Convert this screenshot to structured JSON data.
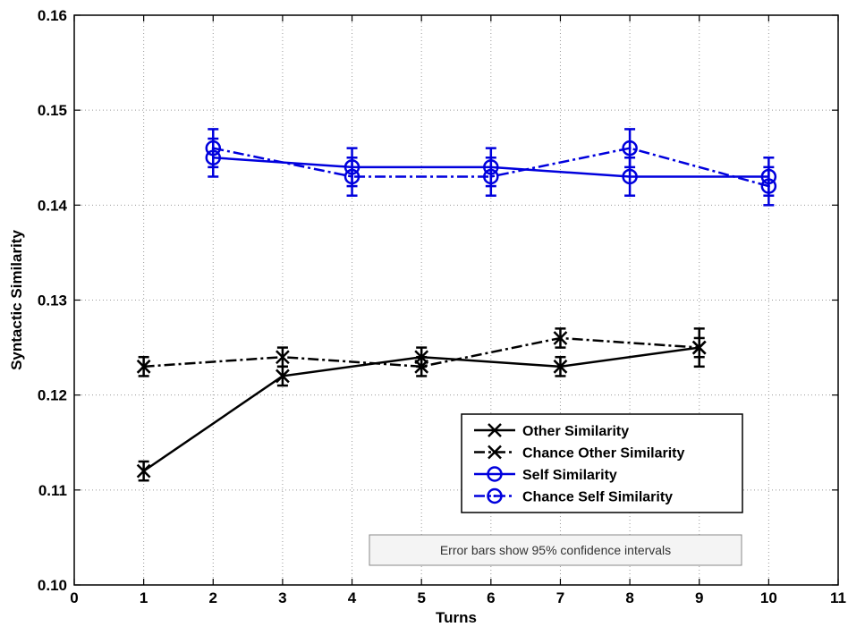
{
  "chart_data": {
    "type": "line",
    "xlabel": "Turns",
    "ylabel": "Syntactic Similarity",
    "xlim": [
      0,
      11
    ],
    "ylim": [
      0.1,
      0.16
    ],
    "xticks": [
      0,
      1,
      2,
      3,
      4,
      5,
      6,
      7,
      8,
      9,
      10,
      11
    ],
    "xtick_labels": [
      "0",
      "1",
      "2",
      "3",
      "4",
      "5",
      "6",
      "7",
      "8",
      "9",
      "10",
      "11"
    ],
    "yticks": [
      0.1,
      0.11,
      0.12,
      0.13,
      0.14,
      0.15,
      0.16
    ],
    "ytick_labels": [
      "0.10",
      "0.11",
      "0.12",
      "0.13",
      "0.14",
      "0.15",
      "0.16"
    ],
    "grid": true,
    "legend_position": "bottom-right",
    "annotation": "Error bars show 95% confidence intervals",
    "series": [
      {
        "name": "Other Similarity",
        "color": "#000000",
        "dash": "solid",
        "marker": "x",
        "x": [
          1,
          3,
          5,
          7,
          9
        ],
        "y": [
          0.112,
          0.122,
          0.124,
          0.123,
          0.125
        ],
        "err": [
          0.001,
          0.001,
          0.001,
          0.001,
          0.002
        ]
      },
      {
        "name": "Chance Other Similarity",
        "color": "#000000",
        "dash": "dashdot",
        "marker": "x",
        "x": [
          1,
          3,
          5,
          7,
          9
        ],
        "y": [
          0.123,
          0.124,
          0.123,
          0.126,
          0.125
        ],
        "err": [
          0.001,
          0.001,
          0.001,
          0.001,
          0.001
        ]
      },
      {
        "name": "Self Similarity",
        "color": "#0000dd",
        "dash": "solid",
        "marker": "o",
        "x": [
          2,
          4,
          6,
          8,
          10
        ],
        "y": [
          0.145,
          0.144,
          0.144,
          0.143,
          0.143
        ],
        "err": [
          0.002,
          0.002,
          0.002,
          0.002,
          0.002
        ]
      },
      {
        "name": "Chance Self Similarity",
        "color": "#0000dd",
        "dash": "dashdot",
        "marker": "o-dot",
        "x": [
          2,
          4,
          6,
          8,
          10
        ],
        "y": [
          0.146,
          0.143,
          0.143,
          0.146,
          0.142
        ],
        "err": [
          0.002,
          0.002,
          0.002,
          0.002,
          0.002
        ]
      }
    ]
  }
}
